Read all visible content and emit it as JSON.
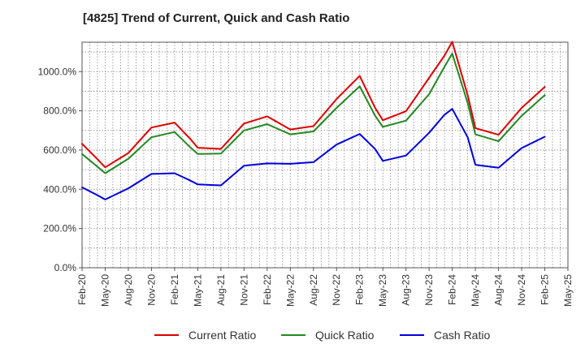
{
  "chart_data": {
    "type": "line",
    "title": "[4825]  Trend of Current, Quick and Cash Ratio",
    "xlabel": "",
    "ylabel": "",
    "ylim": [
      0,
      1150
    ],
    "y_ticks": [
      0,
      200,
      400,
      600,
      800,
      1000
    ],
    "y_tick_labels": [
      "0.0%",
      "200.0%",
      "400.0%",
      "600.0%",
      "800.0%",
      "1000.0%"
    ],
    "x_tick_labels": [
      "Feb-20",
      "May-20",
      "Aug-20",
      "Nov-20",
      "Feb-21",
      "May-21",
      "Aug-21",
      "Nov-21",
      "Feb-22",
      "May-22",
      "Aug-22",
      "Nov-22",
      "Feb-23",
      "May-23",
      "Aug-23",
      "Nov-23",
      "Feb-24",
      "May-24",
      "Aug-24",
      "Nov-24",
      "Feb-25",
      "May-25"
    ],
    "x": [
      "Feb-20",
      "Apr-20",
      "May-20",
      "Aug-20",
      "Nov-20",
      "Feb-21",
      "Apr-21",
      "May-21",
      "Aug-21",
      "Nov-21",
      "Feb-22",
      "May-22",
      "Aug-22",
      "Nov-22",
      "Feb-23",
      "Apr-23",
      "May-23",
      "Aug-23",
      "Nov-23",
      "Jan-24",
      "Feb-24",
      "Apr-24",
      "May-24",
      "Aug-24",
      "Nov-24",
      "Feb-25"
    ],
    "series": [
      {
        "name": "Current Ratio",
        "color": "#dd0000",
        "values": [
          632,
          553,
          512,
          585,
          715,
          740,
          658,
          612,
          606,
          735,
          772,
          705,
          722,
          860,
          978,
          815,
          752,
          798,
          968,
          1082,
          1152,
          880,
          712,
          678,
          815,
          922
        ]
      },
      {
        "name": "Quick Ratio",
        "color": "#228822",
        "values": [
          580,
          515,
          482,
          556,
          665,
          692,
          615,
          580,
          582,
          700,
          732,
          680,
          695,
          815,
          925,
          775,
          718,
          750,
          885,
          1025,
          1092,
          840,
          680,
          645,
          775,
          880
        ]
      },
      {
        "name": "Cash Ratio",
        "color": "#0000dd",
        "values": [
          410,
          370,
          348,
          405,
          478,
          482,
          445,
          425,
          420,
          520,
          532,
          530,
          538,
          628,
          682,
          605,
          545,
          572,
          688,
          780,
          810,
          665,
          525,
          510,
          610,
          668
        ]
      }
    ]
  }
}
